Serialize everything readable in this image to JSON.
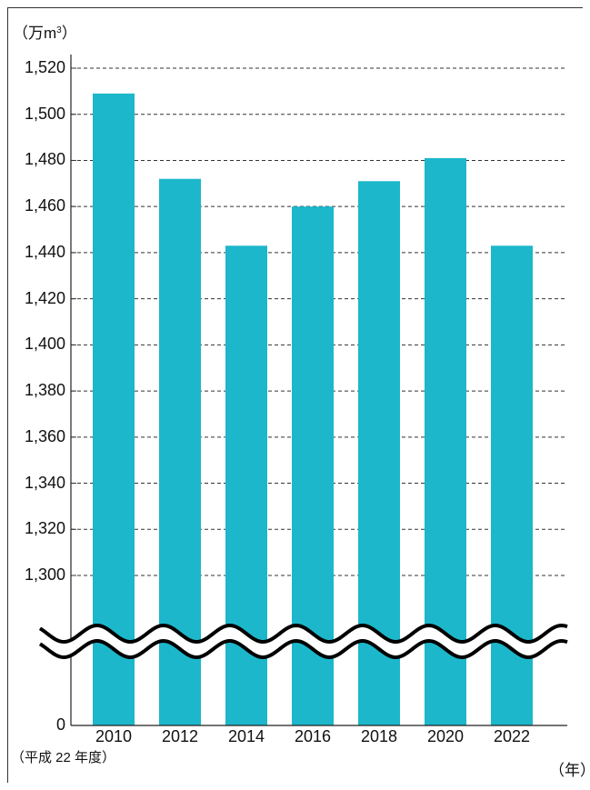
{
  "chart_data": {
    "type": "bar",
    "categories": [
      "2010",
      "2012",
      "2014",
      "2016",
      "2018",
      "2020",
      "2022"
    ],
    "values": [
      1509,
      1472,
      1443,
      1460,
      1471,
      1481,
      1443
    ],
    "ylabel_prefix": "（万m",
    "ylabel_sup": "3",
    "ylabel_suffix": "）",
    "xlabel": "（年）",
    "base_note": "（平成 22 年度）",
    "ylim": [
      1300,
      1520
    ],
    "yticks": [
      "1,520",
      "1,500",
      "1,480",
      "1,460",
      "1,440",
      "1,420",
      "1,400",
      "1,380",
      "1,360",
      "1,340",
      "1,320",
      "1,300"
    ],
    "zero_label": "0",
    "axis_break": true,
    "grid": "dashed horizontal",
    "bar_color": "#1cb7cb"
  }
}
